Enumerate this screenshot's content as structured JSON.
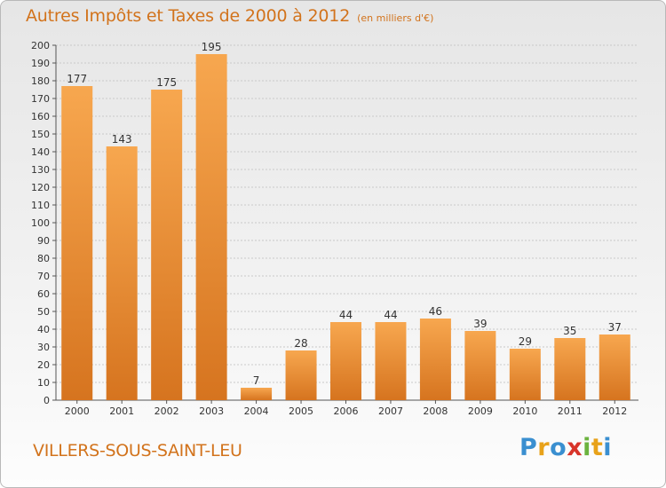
{
  "header": {
    "title": "Autres Impôts et Taxes de 2000 à 2012",
    "unit_note": "(en milliers d'€)"
  },
  "footer": {
    "commune": "VILLERS-SOUS-SAINT-LEU",
    "logo": {
      "letters": [
        "P",
        "r",
        "o",
        "x",
        "i",
        "t",
        "i"
      ],
      "colors": [
        "#3a8fd0",
        "#e8a21a",
        "#3a8fd0",
        "#d8342a",
        "#6cb33f",
        "#e8a21a",
        "#3a8fd0"
      ]
    }
  },
  "colors": {
    "accent": "#d2731c",
    "bar_light": "#f7a74f",
    "bar_dark": "#d6741f",
    "grid": "#c9c9c9"
  },
  "chart_data": {
    "type": "bar",
    "categories": [
      "2000",
      "2001",
      "2002",
      "2003",
      "2004",
      "2005",
      "2006",
      "2007",
      "2008",
      "2009",
      "2010",
      "2011",
      "2012"
    ],
    "values": [
      177,
      143,
      175,
      195,
      7,
      28,
      44,
      44,
      46,
      39,
      29,
      35,
      37
    ],
    "ylim": [
      0,
      200
    ],
    "yticks": [
      0,
      10,
      20,
      30,
      40,
      50,
      60,
      70,
      80,
      90,
      100,
      110,
      120,
      130,
      140,
      150,
      160,
      170,
      180,
      190,
      200
    ],
    "grid": true,
    "data_labels": true
  }
}
